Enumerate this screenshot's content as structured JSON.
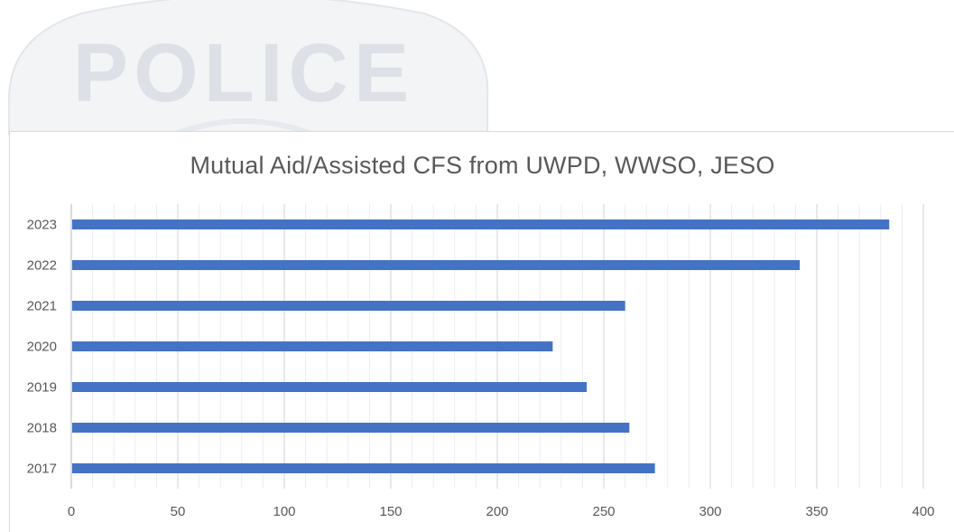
{
  "background_badge": {
    "text": "POLICE",
    "color": "#d9dde3"
  },
  "chart_data": {
    "type": "bar",
    "orientation": "horizontal",
    "title": "Mutual Aid/Assisted CFS from UWPD, WWSO, JESO",
    "categories": [
      "2023",
      "2022",
      "2021",
      "2020",
      "2019",
      "2018",
      "2017"
    ],
    "values": [
      384,
      342,
      260,
      226,
      242,
      262,
      274
    ],
    "xlim": [
      0,
      400
    ],
    "x_ticks": [
      "0",
      "50",
      "100",
      "150",
      "200",
      "250",
      "300",
      "350",
      "400"
    ],
    "xlabel": "",
    "ylabel": "",
    "grid": "vertical major and minor",
    "legend": "none",
    "bar_color": "#4472c4",
    "grid_color": "#d9d9d9",
    "text_color": "#595959"
  }
}
